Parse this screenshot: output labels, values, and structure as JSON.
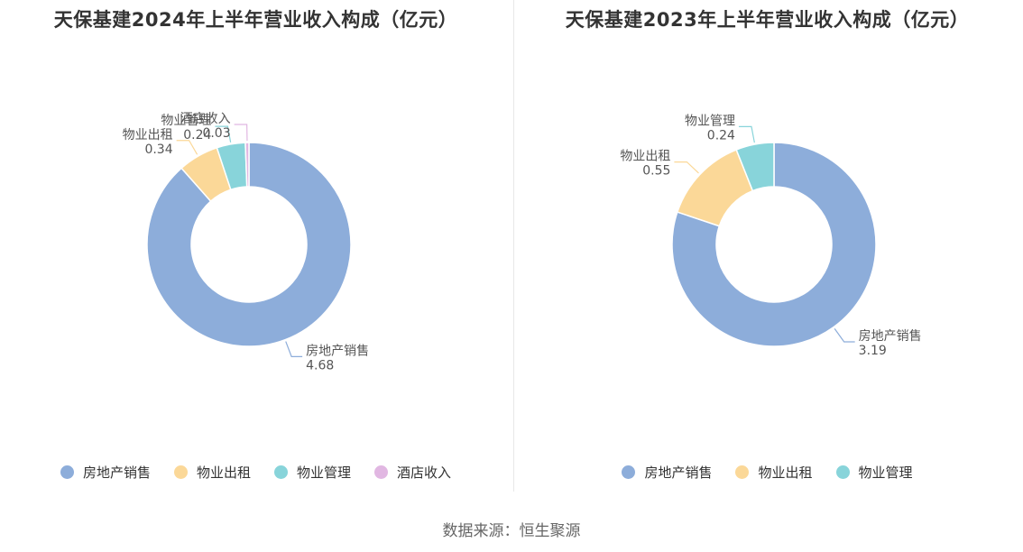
{
  "colors": {
    "sales": "#8dadda",
    "rent": "#fbd898",
    "mgmt": "#88d4da",
    "hotel": "#e1b7e2"
  },
  "chart_data": [
    {
      "type": "pie",
      "title": "天保基建2024年上半年营业收入构成（亿元）",
      "slices": [
        {
          "name": "房地产销售",
          "value": 4.68,
          "value_label": "4.68",
          "color": "#8dadda"
        },
        {
          "name": "物业出租",
          "value": 0.34,
          "value_label": "0.34",
          "color": "#fbd898"
        },
        {
          "name": "物业管理",
          "value": 0.24,
          "value_label": "0.24",
          "color": "#88d4da"
        },
        {
          "name": "酒店收入",
          "value": 0.03,
          "value_label": "0.03",
          "color": "#e1b7e2"
        }
      ],
      "legend": [
        "房地产销售",
        "物业出租",
        "物业管理",
        "酒店收入"
      ],
      "legend_position": "bottom"
    },
    {
      "type": "pie",
      "title": "天保基建2023年上半年营业收入构成（亿元）",
      "slices": [
        {
          "name": "房地产销售",
          "value": 3.19,
          "value_label": "3.19",
          "color": "#8dadda"
        },
        {
          "name": "物业出租",
          "value": 0.55,
          "value_label": "0.55",
          "color": "#fbd898"
        },
        {
          "name": "物业管理",
          "value": 0.24,
          "value_label": "0.24",
          "color": "#88d4da"
        }
      ],
      "legend": [
        "房地产销售",
        "物业出租",
        "物业管理"
      ],
      "legend_position": "bottom"
    }
  ],
  "source": "数据来源：恒生聚源"
}
